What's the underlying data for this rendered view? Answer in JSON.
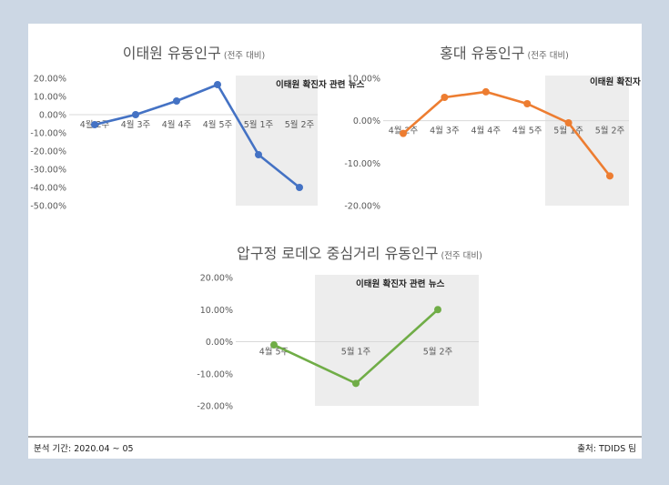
{
  "footer": {
    "period": "분석 기간: 2020.04 ~ 05",
    "source": "출처: TDIDS 팀"
  },
  "chart_data": [
    {
      "type": "line",
      "title": "이태원 유동인구",
      "subtitle": "(전주 대비)",
      "annotation": "이태원 확진자 관련 뉴스",
      "categories": [
        "4월 2주",
        "4월 3주",
        "4월 4주",
        "4월 5주",
        "5월 1주",
        "5월 2주"
      ],
      "series": [
        {
          "values": [
            -5.5,
            0.0,
            7.5,
            16.5,
            -22.0,
            -40.0
          ]
        }
      ],
      "ylim": [
        -50,
        20
      ],
      "yticks": [
        "20.00%",
        "10.00%",
        "0.00%",
        "-10.00%",
        "-20.00%",
        "-30.00%",
        "-40.00%",
        "-50.00%"
      ],
      "shaded_from_category": "5월 1주",
      "color": "#4472c4",
      "grid": false
    },
    {
      "type": "line",
      "title": "홍대 유동인구",
      "subtitle": "(전주 대비)",
      "annotation": "이태원 확진자 관련 뉴스",
      "categories": [
        "4월 2주",
        "4월 3주",
        "4월 4주",
        "4월 5주",
        "5월 1주",
        "5월 2주"
      ],
      "series": [
        {
          "values": [
            -3.0,
            5.5,
            6.8,
            4.0,
            -0.5,
            -13.0
          ]
        }
      ],
      "ylim": [
        -20,
        10
      ],
      "yticks": [
        "10.00%",
        "0.00%",
        "-10.00%",
        "-20.00%"
      ],
      "shaded_from_category": "5월 1주",
      "color": "#ed7d31",
      "grid": false
    },
    {
      "type": "line",
      "title": "압구정 로데오 중심거리 유동인구",
      "subtitle": "(전주 대비)",
      "annotation": "이태원 확진자 관련 뉴스",
      "categories": [
        "4월 5주",
        "5월 1주",
        "5월 2주"
      ],
      "series": [
        {
          "values": [
            -1.0,
            -13.0,
            10.0
          ]
        }
      ],
      "ylim": [
        -20,
        20
      ],
      "yticks": [
        "20.00%",
        "10.00%",
        "0.00%",
        "-10.00%",
        "-20.00%"
      ],
      "shaded_from_category": "5월 1주",
      "color": "#70ad47",
      "grid": false
    }
  ]
}
